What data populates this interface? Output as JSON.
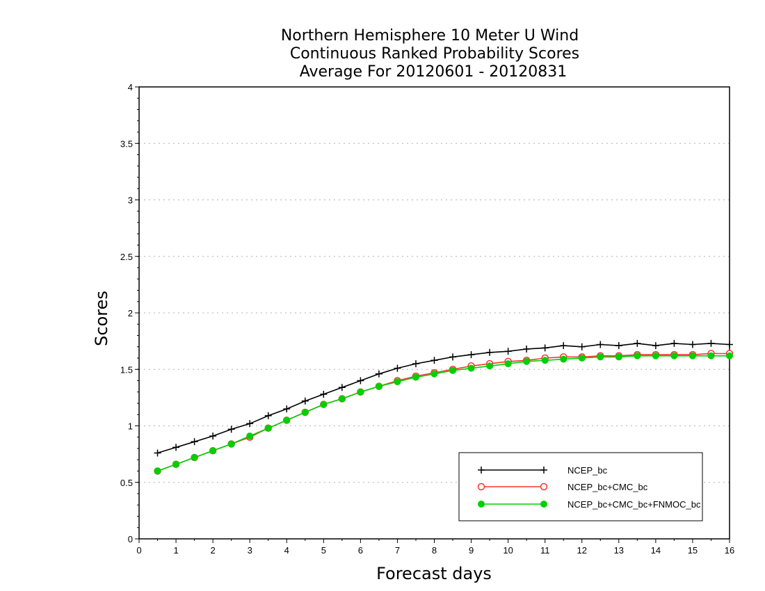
{
  "chart_data": {
    "type": "line",
    "title": [
      "Northern Hemisphere 10 Meter U Wind",
      "Continuous Ranked Probability Scores",
      "Average For 20120601 - 20120831"
    ],
    "xlabel": "Forecast days",
    "ylabel": "Scores",
    "xlim": [
      0,
      16
    ],
    "ylim": [
      0,
      4
    ],
    "xticks": [
      0,
      1,
      2,
      3,
      4,
      5,
      6,
      7,
      8,
      9,
      10,
      11,
      12,
      13,
      14,
      15,
      16
    ],
    "yticks": [
      0,
      0.5,
      1,
      1.5,
      2,
      2.5,
      3,
      3.5,
      4
    ],
    "ytick_labels": [
      "0",
      "0.5",
      "1",
      "1.5",
      "2",
      "2.5",
      "3",
      "3.5",
      "4"
    ],
    "grid": "horizontal dotted",
    "legend_position": "bottom-right",
    "x": [
      0.5,
      1,
      1.5,
      2,
      2.5,
      3,
      3.5,
      4,
      4.5,
      5,
      5.5,
      6,
      6.5,
      7,
      7.5,
      8,
      8.5,
      9,
      9.5,
      10,
      10.5,
      11,
      11.5,
      12,
      12.5,
      13,
      13.5,
      14,
      14.5,
      15,
      15.5,
      16
    ],
    "series": [
      {
        "name": "NCEP_bc",
        "color": "#000000",
        "marker": "plus",
        "values": [
          0.76,
          0.81,
          0.86,
          0.91,
          0.97,
          1.02,
          1.09,
          1.15,
          1.22,
          1.28,
          1.34,
          1.4,
          1.46,
          1.51,
          1.55,
          1.58,
          1.61,
          1.63,
          1.65,
          1.66,
          1.68,
          1.69,
          1.71,
          1.7,
          1.72,
          1.71,
          1.73,
          1.71,
          1.73,
          1.72,
          1.73,
          1.72
        ]
      },
      {
        "name": "NCEP_bc+CMC_bc",
        "color": "#ff3030",
        "marker": "open-circle",
        "values": [
          0.6,
          0.66,
          0.72,
          0.78,
          0.84,
          0.9,
          0.98,
          1.05,
          1.12,
          1.19,
          1.24,
          1.3,
          1.35,
          1.4,
          1.44,
          1.47,
          1.5,
          1.53,
          1.55,
          1.57,
          1.58,
          1.6,
          1.61,
          1.61,
          1.62,
          1.62,
          1.63,
          1.63,
          1.63,
          1.63,
          1.64,
          1.64
        ]
      },
      {
        "name": "NCEP_bc+CMC_bc+FNMOC_bc",
        "color": "#00d000",
        "marker": "filled-circle",
        "values": [
          0.6,
          0.66,
          0.72,
          0.78,
          0.84,
          0.91,
          0.98,
          1.05,
          1.12,
          1.19,
          1.24,
          1.3,
          1.35,
          1.39,
          1.43,
          1.46,
          1.49,
          1.51,
          1.53,
          1.55,
          1.57,
          1.58,
          1.59,
          1.6,
          1.61,
          1.61,
          1.62,
          1.62,
          1.62,
          1.62,
          1.62,
          1.62
        ]
      }
    ]
  }
}
